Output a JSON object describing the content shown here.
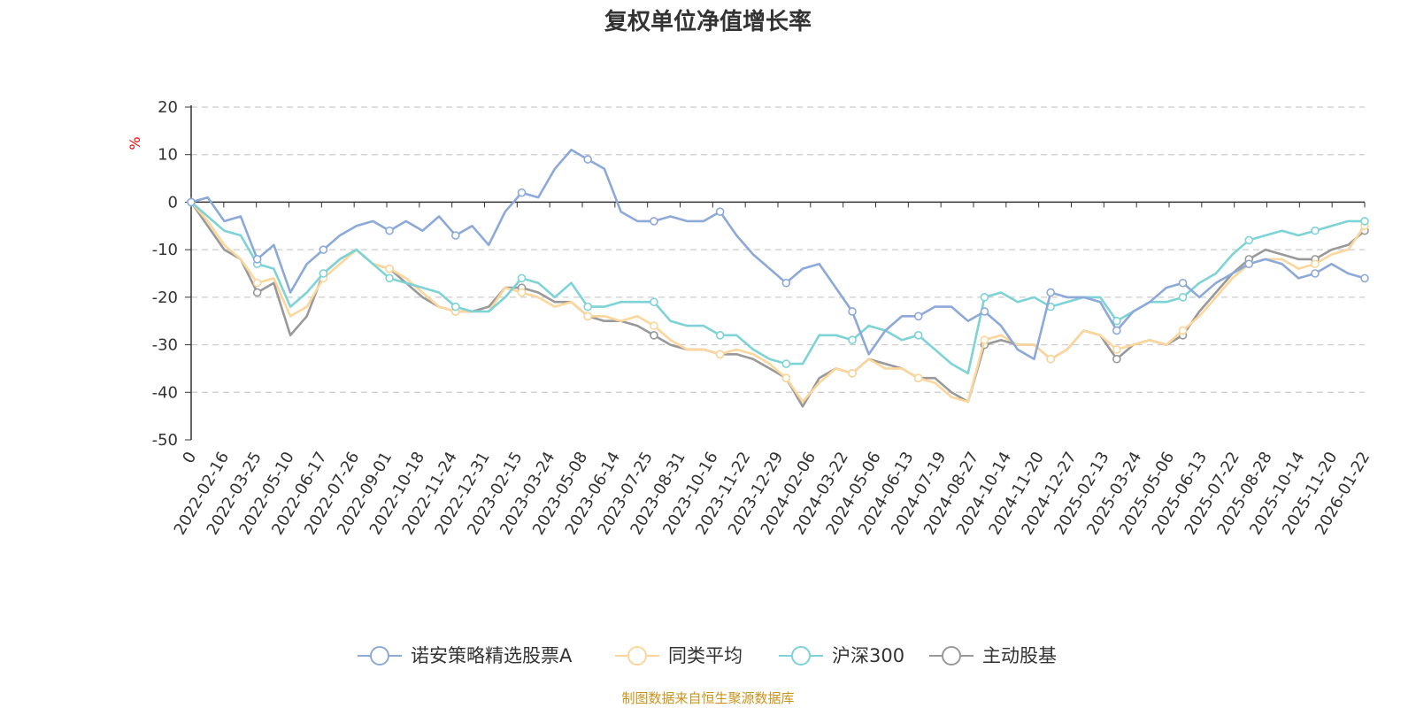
{
  "colors": {
    "series": [
      "#8ca9d8",
      "#fcd69b",
      "#7dd3d6",
      "#999999"
    ],
    "axis": "#333333",
    "grid": "#cccccc",
    "unit": "#ff0000",
    "source": "#c8941c"
  },
  "footer": {
    "source": "制图数据来自恒生聚源数据库"
  },
  "chart_data": {
    "type": "line",
    "title": "复权单位净值增长率",
    "ylabel": "%",
    "xlabel": "",
    "ylim": [
      -50,
      20
    ],
    "yticks": [
      20,
      10,
      0,
      -10,
      -20,
      -30,
      -40,
      -50
    ],
    "grid": true,
    "legend_position": "bottom-center",
    "x_tick_labels": [
      "0",
      "2022-02-16",
      "2022-03-25",
      "2022-05-10",
      "2022-06-17",
      "2022-07-26",
      "2022-09-01",
      "2022-10-18",
      "2022-11-24",
      "2022-12-31",
      "2023-02-15",
      "2023-03-24",
      "2023-05-08",
      "2023-06-14",
      "2023-07-25",
      "2023-08-31",
      "2023-10-16",
      "2023-11-22",
      "2023-12-29",
      "2024-02-06",
      "2024-03-22",
      "2024-05-06",
      "2024-06-13",
      "2024-07-19",
      "2024-08-27",
      "2024-10-14",
      "2024-11-20",
      "2024-12-27",
      "2025-02-13",
      "2025-03-24",
      "2025-05-06",
      "2025-06-13",
      "2025-07-22",
      "2025-08-28",
      "2025-10-14",
      "2025-11-20",
      "2026-01-22"
    ],
    "series": [
      {
        "name": "诺安策略精选股票A",
        "values": [
          0,
          1,
          -4,
          -3,
          -12,
          -9,
          -19,
          -13,
          -10,
          -7,
          -5,
          -4,
          -6,
          -4,
          -6,
          -3,
          -7,
          -5,
          -9,
          -2,
          2,
          1,
          7,
          11,
          9,
          7,
          -2,
          -4,
          -4,
          -3,
          -4,
          -4,
          -2,
          -7,
          -11,
          -14,
          -17,
          -14,
          -13,
          -18,
          -23,
          -32,
          -27,
          -24,
          -24,
          -22,
          -22,
          -25,
          -23,
          -26,
          -31,
          -33,
          -19,
          -20,
          -20,
          -21,
          -27,
          -23,
          -21,
          -18,
          -17,
          -20,
          -17,
          -15,
          -13,
          -12,
          -13,
          -16,
          -15,
          -13,
          -15,
          -16
        ]
      },
      {
        "name": "同类平均",
        "values": [
          0,
          -4,
          -9,
          -12,
          -17,
          -16,
          -24,
          -22,
          -16,
          -13,
          -10,
          -13,
          -14,
          -16,
          -19,
          -22,
          -23,
          -23,
          -23,
          -18,
          -19,
          -20,
          -22,
          -21,
          -24,
          -24,
          -25,
          -24,
          -26,
          -29,
          -31,
          -31,
          -32,
          -31,
          -32,
          -34,
          -37,
          -42,
          -38,
          -35,
          -36,
          -33,
          -35,
          -35,
          -37,
          -38,
          -41,
          -42,
          -29,
          -28,
          -30,
          -30,
          -33,
          -31,
          -27,
          -28,
          -31,
          -30,
          -29,
          -30,
          -27,
          -24,
          -20,
          -16,
          -13,
          -12,
          -12,
          -14,
          -13,
          -11,
          -10,
          -5
        ]
      },
      {
        "name": "沪深300",
        "values": [
          0,
          -3,
          -6,
          -7,
          -13,
          -14,
          -22,
          -19,
          -15,
          -12,
          -10,
          -13,
          -16,
          -17,
          -18,
          -19,
          -22,
          -23,
          -23,
          -20,
          -16,
          -17,
          -20,
          -17,
          -22,
          -22,
          -21,
          -21,
          -21,
          -25,
          -26,
          -26,
          -28,
          -28,
          -31,
          -33,
          -34,
          -34,
          -28,
          -28,
          -29,
          -26,
          -27,
          -29,
          -28,
          -31,
          -34,
          -36,
          -20,
          -19,
          -21,
          -20,
          -22,
          -21,
          -20,
          -20,
          -25,
          -23,
          -21,
          -21,
          -20,
          -17,
          -15,
          -11,
          -8,
          -7,
          -6,
          -7,
          -6,
          -5,
          -4,
          -4
        ]
      },
      {
        "name": "主动股基",
        "values": [
          0,
          -5,
          -10,
          -12,
          -19,
          -17,
          -28,
          -24,
          -15,
          -12,
          -10,
          -13,
          -14,
          -17,
          -20,
          -22,
          -23,
          -23,
          -22,
          -18,
          -18,
          -19,
          -21,
          -21,
          -24,
          -25,
          -25,
          -26,
          -28,
          -30,
          -31,
          -31,
          -32,
          -32,
          -33,
          -35,
          -37,
          -43,
          -37,
          -35,
          -36,
          -33,
          -34,
          -35,
          -37,
          -37,
          -40,
          -42,
          -30,
          -29,
          -30,
          -30,
          -33,
          -31,
          -27,
          -28,
          -33,
          -30,
          -29,
          -30,
          -28,
          -23,
          -19,
          -15,
          -12,
          -10,
          -11,
          -12,
          -12,
          -10,
          -9,
          -6
        ]
      }
    ]
  }
}
